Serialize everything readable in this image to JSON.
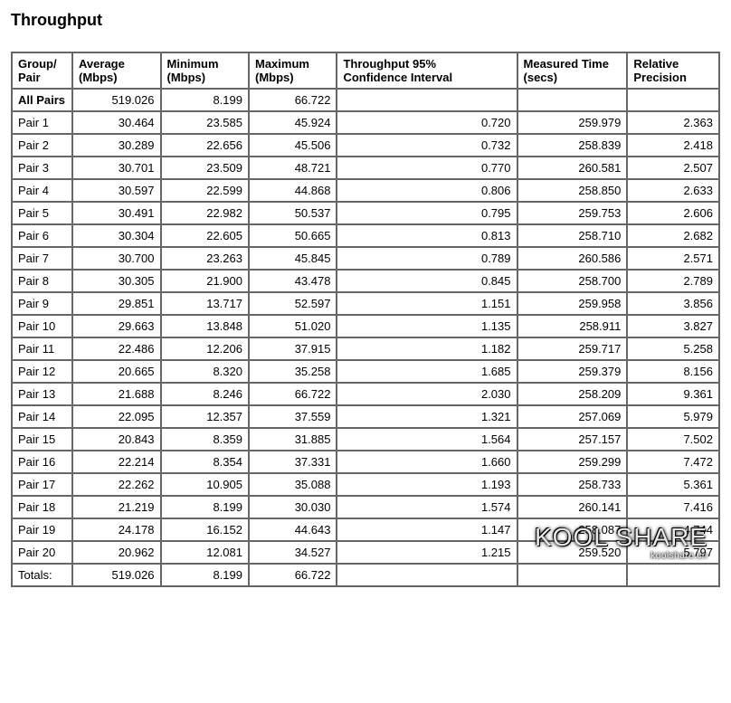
{
  "title": "Throughput",
  "columns": [
    {
      "label_line1": "Group/",
      "label_line2": "Pair",
      "align": "lbl"
    },
    {
      "label_line1": "Average",
      "label_line2": "(Mbps)",
      "align": "num"
    },
    {
      "label_line1": "Minimum",
      "label_line2": "(Mbps)",
      "align": "num"
    },
    {
      "label_line1": "Maximum",
      "label_line2": "(Mbps)",
      "align": "num"
    },
    {
      "label_line1": "Throughput 95%",
      "label_line2": "Confidence Interval",
      "align": "num"
    },
    {
      "label_line1": "Measured Time",
      "label_line2": "(secs)",
      "align": "num"
    },
    {
      "label_line1": "Relative",
      "label_line2": "Precision",
      "align": "num"
    }
  ],
  "summary": {
    "label": "All Pairs",
    "average": "519.026",
    "minimum": "8.199",
    "maximum": "66.722",
    "ci": "",
    "time": "",
    "precision": ""
  },
  "rows": [
    {
      "label": "Pair 1",
      "average": "30.464",
      "minimum": "23.585",
      "maximum": "45.924",
      "ci": "0.720",
      "time": "259.979",
      "precision": "2.363"
    },
    {
      "label": "Pair 2",
      "average": "30.289",
      "minimum": "22.656",
      "maximum": "45.506",
      "ci": "0.732",
      "time": "258.839",
      "precision": "2.418"
    },
    {
      "label": "Pair 3",
      "average": "30.701",
      "minimum": "23.509",
      "maximum": "48.721",
      "ci": "0.770",
      "time": "260.581",
      "precision": "2.507"
    },
    {
      "label": "Pair 4",
      "average": "30.597",
      "minimum": "22.599",
      "maximum": "44.868",
      "ci": "0.806",
      "time": "258.850",
      "precision": "2.633"
    },
    {
      "label": "Pair 5",
      "average": "30.491",
      "minimum": "22.982",
      "maximum": "50.537",
      "ci": "0.795",
      "time": "259.753",
      "precision": "2.606"
    },
    {
      "label": "Pair 6",
      "average": "30.304",
      "minimum": "22.605",
      "maximum": "50.665",
      "ci": "0.813",
      "time": "258.710",
      "precision": "2.682"
    },
    {
      "label": "Pair 7",
      "average": "30.700",
      "minimum": "23.263",
      "maximum": "45.845",
      "ci": "0.789",
      "time": "260.586",
      "precision": "2.571"
    },
    {
      "label": "Pair 8",
      "average": "30.305",
      "minimum": "21.900",
      "maximum": "43.478",
      "ci": "0.845",
      "time": "258.700",
      "precision": "2.789"
    },
    {
      "label": "Pair 9",
      "average": "29.851",
      "minimum": "13.717",
      "maximum": "52.597",
      "ci": "1.151",
      "time": "259.958",
      "precision": "3.856"
    },
    {
      "label": "Pair 10",
      "average": "29.663",
      "minimum": "13.848",
      "maximum": "51.020",
      "ci": "1.135",
      "time": "258.911",
      "precision": "3.827"
    },
    {
      "label": "Pair 11",
      "average": "22.486",
      "minimum": "12.206",
      "maximum": "37.915",
      "ci": "1.182",
      "time": "259.717",
      "precision": "5.258"
    },
    {
      "label": "Pair 12",
      "average": "20.665",
      "minimum": "8.320",
      "maximum": "35.258",
      "ci": "1.685",
      "time": "259.379",
      "precision": "8.156"
    },
    {
      "label": "Pair 13",
      "average": "21.688",
      "minimum": "8.246",
      "maximum": "66.722",
      "ci": "2.030",
      "time": "258.209",
      "precision": "9.361"
    },
    {
      "label": "Pair 14",
      "average": "22.095",
      "minimum": "12.357",
      "maximum": "37.559",
      "ci": "1.321",
      "time": "257.069",
      "precision": "5.979"
    },
    {
      "label": "Pair 15",
      "average": "20.843",
      "minimum": "8.359",
      "maximum": "31.885",
      "ci": "1.564",
      "time": "257.157",
      "precision": "7.502"
    },
    {
      "label": "Pair 16",
      "average": "22.214",
      "minimum": "8.354",
      "maximum": "37.331",
      "ci": "1.660",
      "time": "259.299",
      "precision": "7.472"
    },
    {
      "label": "Pair 17",
      "average": "22.262",
      "minimum": "10.905",
      "maximum": "35.088",
      "ci": "1.193",
      "time": "258.733",
      "precision": "5.361"
    },
    {
      "label": "Pair 18",
      "average": "21.219",
      "minimum": "8.199",
      "maximum": "30.030",
      "ci": "1.574",
      "time": "260.141",
      "precision": "7.416"
    },
    {
      "label": "Pair 19",
      "average": "24.178",
      "minimum": "16.152",
      "maximum": "44.643",
      "ci": "1.147",
      "time": "258.087",
      "precision": "4.744"
    },
    {
      "label": "Pair 20",
      "average": "20.962",
      "minimum": "12.081",
      "maximum": "34.527",
      "ci": "1.215",
      "time": "259.520",
      "precision": "5.797"
    }
  ],
  "totals": {
    "label": "Totals:",
    "average": "519.026",
    "minimum": "8.199",
    "maximum": "66.722",
    "ci": "",
    "time": "",
    "precision": ""
  },
  "watermark": {
    "main": "KOOL SHARE",
    "sub": "koolshare.cn"
  }
}
